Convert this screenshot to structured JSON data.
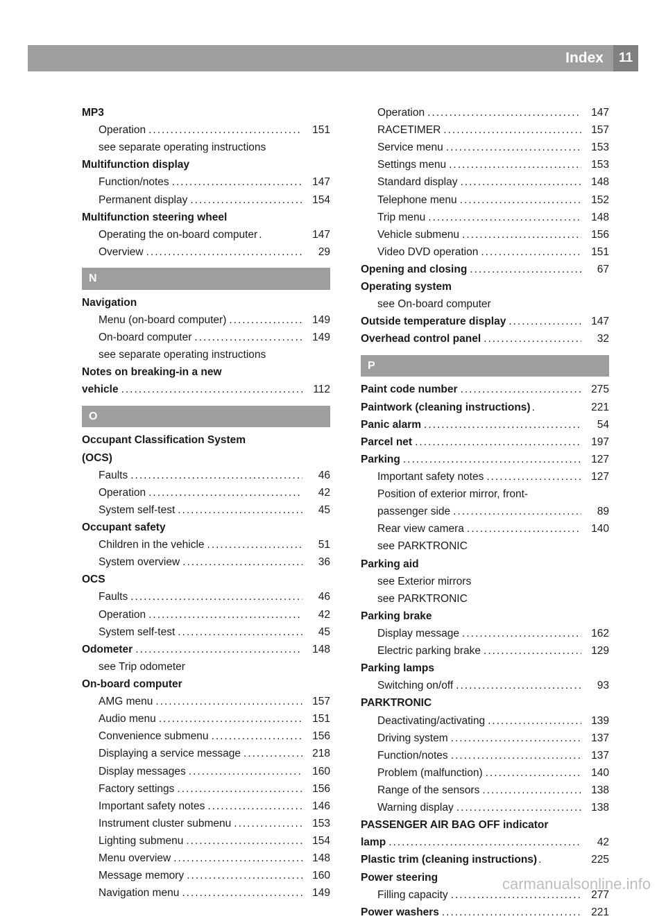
{
  "header": {
    "title": "Index",
    "page": "11"
  },
  "watermark": "carmanualsonline.info",
  "columns": [
    {
      "items": [
        {
          "type": "heading",
          "label": "MP3"
        },
        {
          "type": "sub",
          "label": "Operation",
          "page": "151"
        },
        {
          "type": "subtext",
          "label": "see separate operating instructions"
        },
        {
          "type": "heading",
          "label": "Multifunction display"
        },
        {
          "type": "sub",
          "label": "Function/notes",
          "page": "147"
        },
        {
          "type": "sub",
          "label": "Permanent display",
          "page": "154"
        },
        {
          "type": "heading",
          "label": "Multifunction steering wheel"
        },
        {
          "type": "sub",
          "label": "Operating the on-board computer",
          "page": "147",
          "shortdots": true
        },
        {
          "type": "sub",
          "label": "Overview",
          "page": "29"
        },
        {
          "type": "letter",
          "label": "N"
        },
        {
          "type": "heading",
          "label": "Navigation"
        },
        {
          "type": "sub",
          "label": "Menu (on-board computer)",
          "page": "149"
        },
        {
          "type": "sub",
          "label": "On-board computer",
          "page": "149"
        },
        {
          "type": "subtext",
          "label": "see separate operating instructions"
        },
        {
          "type": "boldline",
          "label": "Notes on breaking-in a new",
          "cont": true
        },
        {
          "type": "boldentry",
          "label": "vehicle",
          "page": "112"
        },
        {
          "type": "letter",
          "label": "O"
        },
        {
          "type": "boldline",
          "label": "Occupant Classification System",
          "cont": true
        },
        {
          "type": "heading",
          "label": "(OCS)"
        },
        {
          "type": "sub",
          "label": "Faults",
          "page": "46"
        },
        {
          "type": "sub",
          "label": "Operation",
          "page": "42"
        },
        {
          "type": "sub",
          "label": "System self-test",
          "page": "45"
        },
        {
          "type": "heading",
          "label": "Occupant safety"
        },
        {
          "type": "sub",
          "label": "Children in the vehicle",
          "page": "51"
        },
        {
          "type": "sub",
          "label": "System overview",
          "page": "36"
        },
        {
          "type": "heading",
          "label": "OCS"
        },
        {
          "type": "sub",
          "label": "Faults",
          "page": "46"
        },
        {
          "type": "sub",
          "label": "Operation",
          "page": "42"
        },
        {
          "type": "sub",
          "label": "System self-test",
          "page": "45"
        },
        {
          "type": "boldentry",
          "label": "Odometer",
          "page": "148"
        },
        {
          "type": "subtext",
          "label": "see Trip odometer"
        },
        {
          "type": "heading",
          "label": "On-board computer"
        },
        {
          "type": "sub",
          "label": "AMG menu",
          "page": "157"
        },
        {
          "type": "sub",
          "label": "Audio menu",
          "page": "151"
        },
        {
          "type": "sub",
          "label": "Convenience submenu",
          "page": "156"
        },
        {
          "type": "sub",
          "label": "Displaying a service message",
          "page": "218"
        },
        {
          "type": "sub",
          "label": "Display messages",
          "page": "160"
        },
        {
          "type": "sub",
          "label": "Factory settings",
          "page": "156"
        },
        {
          "type": "sub",
          "label": "Important safety notes",
          "page": "146"
        },
        {
          "type": "sub",
          "label": "Instrument cluster submenu",
          "page": "153"
        },
        {
          "type": "sub",
          "label": "Lighting submenu",
          "page": "154"
        },
        {
          "type": "sub",
          "label": "Menu overview",
          "page": "148"
        },
        {
          "type": "sub",
          "label": "Message memory",
          "page": "160"
        },
        {
          "type": "sub",
          "label": "Navigation menu",
          "page": "149"
        }
      ]
    },
    {
      "items": [
        {
          "type": "sub",
          "label": "Operation",
          "page": "147"
        },
        {
          "type": "sub",
          "label": "RACETIMER",
          "page": "157"
        },
        {
          "type": "sub",
          "label": "Service menu",
          "page": "153"
        },
        {
          "type": "sub",
          "label": "Settings menu",
          "page": "153"
        },
        {
          "type": "sub",
          "label": "Standard display",
          "page": "148"
        },
        {
          "type": "sub",
          "label": "Telephone menu",
          "page": "152"
        },
        {
          "type": "sub",
          "label": "Trip menu",
          "page": "148"
        },
        {
          "type": "sub",
          "label": "Vehicle submenu",
          "page": "156"
        },
        {
          "type": "sub",
          "label": "Video DVD operation",
          "page": "151"
        },
        {
          "type": "boldentry",
          "label": "Opening and closing",
          "page": "67"
        },
        {
          "type": "heading",
          "label": "Operating system"
        },
        {
          "type": "subtext",
          "label": "see On-board computer"
        },
        {
          "type": "boldentry",
          "label": "Outside temperature display",
          "page": "147"
        },
        {
          "type": "boldentry",
          "label": "Overhead control panel",
          "page": "32"
        },
        {
          "type": "letter",
          "label": "P"
        },
        {
          "type": "boldentry",
          "label": "Paint code number",
          "page": "275"
        },
        {
          "type": "boldentry",
          "label": "Paintwork (cleaning instructions)",
          "page": "221",
          "shortdots": true
        },
        {
          "type": "boldentry",
          "label": "Panic alarm",
          "page": "54"
        },
        {
          "type": "boldentry",
          "label": "Parcel net",
          "page": "197"
        },
        {
          "type": "boldentry",
          "label": "Parking",
          "page": "127"
        },
        {
          "type": "sub",
          "label": "Important safety notes",
          "page": "127"
        },
        {
          "type": "subtext",
          "label": "Position of exterior mirror, front-"
        },
        {
          "type": "sub",
          "label": "passenger side",
          "page": "89"
        },
        {
          "type": "sub",
          "label": "Rear view camera",
          "page": "140"
        },
        {
          "type": "subtext",
          "label": "see PARKTRONIC"
        },
        {
          "type": "heading",
          "label": "Parking aid"
        },
        {
          "type": "subtext",
          "label": "see Exterior mirrors"
        },
        {
          "type": "subtext",
          "label": "see PARKTRONIC"
        },
        {
          "type": "heading",
          "label": "Parking brake"
        },
        {
          "type": "sub",
          "label": "Display message",
          "page": "162"
        },
        {
          "type": "sub",
          "label": "Electric parking brake",
          "page": "129"
        },
        {
          "type": "heading",
          "label": "Parking lamps"
        },
        {
          "type": "sub",
          "label": "Switching on/off",
          "page": "93"
        },
        {
          "type": "heading",
          "label": "PARKTRONIC"
        },
        {
          "type": "sub",
          "label": "Deactivating/activating",
          "page": "139"
        },
        {
          "type": "sub",
          "label": "Driving system",
          "page": "137"
        },
        {
          "type": "sub",
          "label": "Function/notes",
          "page": "137"
        },
        {
          "type": "sub",
          "label": "Problem (malfunction)",
          "page": "140"
        },
        {
          "type": "sub",
          "label": "Range of the sensors",
          "page": "138"
        },
        {
          "type": "sub",
          "label": "Warning display",
          "page": "138"
        },
        {
          "type": "boldline",
          "label": "PASSENGER AIR BAG OFF indicator",
          "cont": true
        },
        {
          "type": "boldentry",
          "label": "lamp",
          "page": "42"
        },
        {
          "type": "boldentry",
          "label": "Plastic trim (cleaning instructions)",
          "page": "225",
          "shortdots": true
        },
        {
          "type": "heading",
          "label": "Power steering"
        },
        {
          "type": "sub",
          "label": "Filling capacity",
          "page": "277"
        },
        {
          "type": "boldentry",
          "label": "Power washers",
          "page": "221"
        }
      ]
    }
  ]
}
